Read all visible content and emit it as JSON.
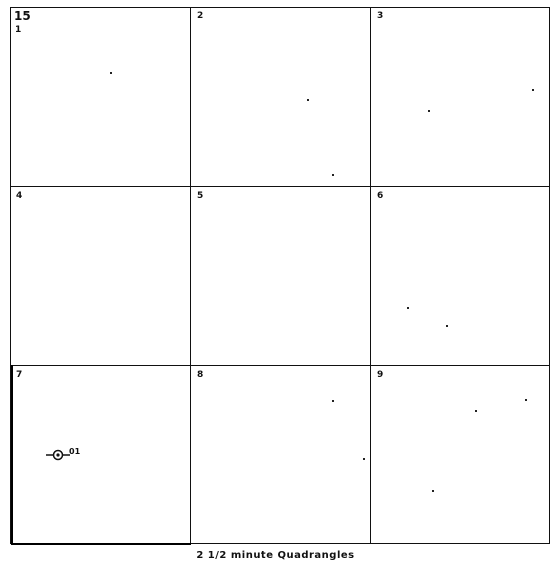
{
  "sheet": {
    "number": "15"
  },
  "quadrangles": [
    {
      "label": "1"
    },
    {
      "label": "2"
    },
    {
      "label": "3"
    },
    {
      "label": "4"
    },
    {
      "label": "5"
    },
    {
      "label": "6"
    },
    {
      "label": "7"
    },
    {
      "label": "8"
    },
    {
      "label": "9"
    }
  ],
  "site_marker": {
    "label": "01",
    "quadrangle": "7",
    "icon": "survey-point-icon"
  },
  "caption": "2 1/2  minute   Quadrangles"
}
